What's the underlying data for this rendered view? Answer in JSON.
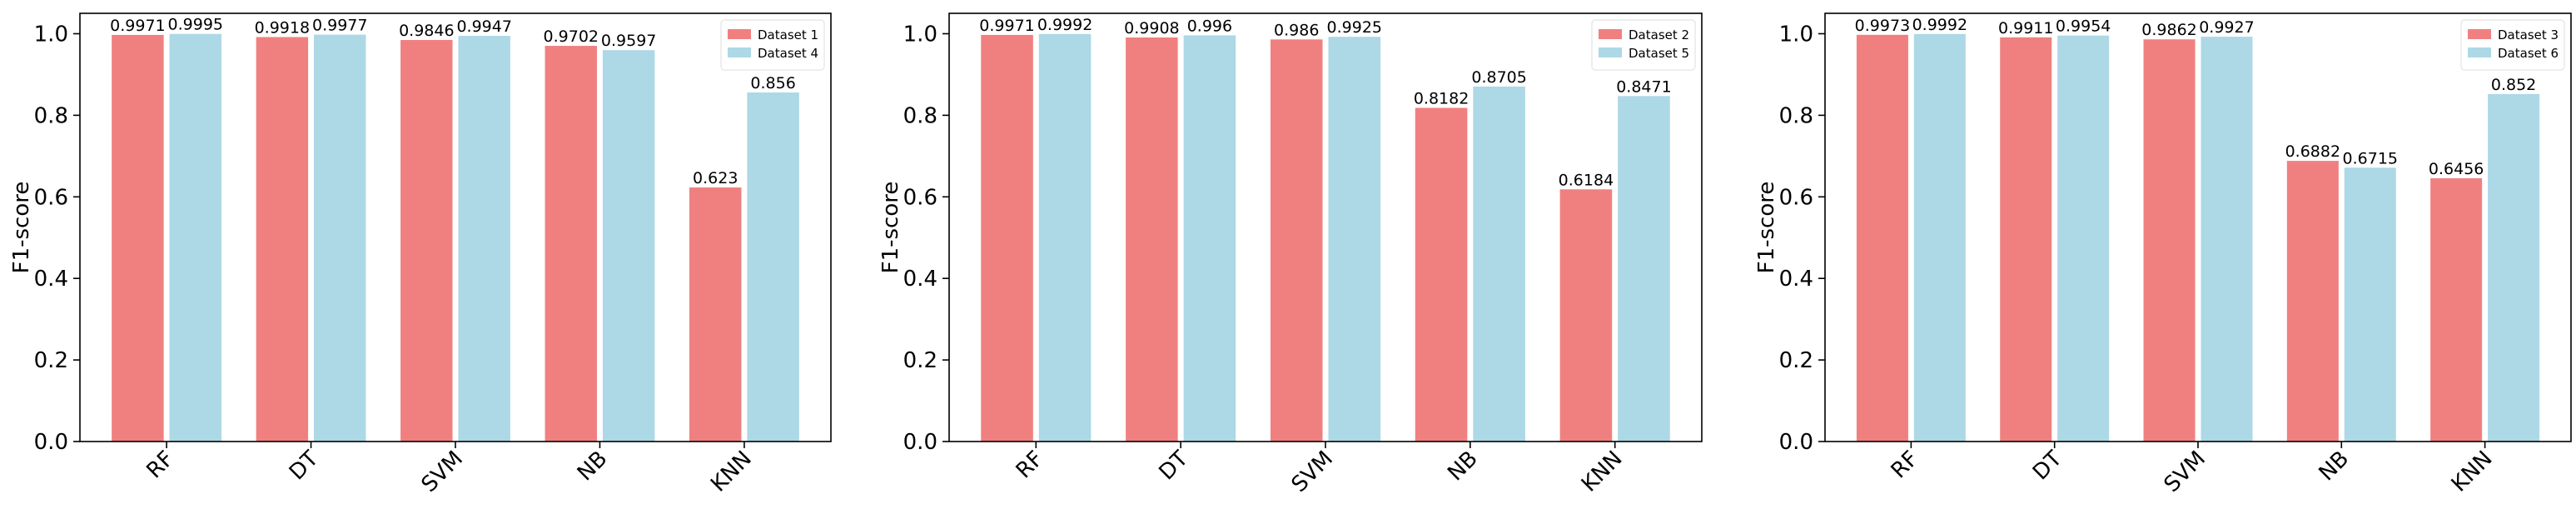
{
  "chart_data": [
    {
      "type": "bar",
      "y_label": "F1-score",
      "categories": [
        "RF",
        "DT",
        "SVM",
        "NB",
        "KNN"
      ],
      "series": [
        {
          "name": "Dataset 1",
          "color": "#f08080",
          "values": [
            0.9971,
            0.9918,
            0.9846,
            0.9702,
            0.623
          ]
        },
        {
          "name": "Dataset 4",
          "color": "#add8e6",
          "values": [
            0.9995,
            0.9977,
            0.9947,
            0.9597,
            0.856
          ]
        }
      ],
      "ylim": [
        0,
        1.05
      ],
      "yticks": [
        {
          "value": 0,
          "label": "0.0"
        },
        0.2,
        0.4,
        0.6,
        0.8,
        {
          "value": 1,
          "label": "1.0"
        }
      ],
      "legend": "upper right"
    },
    {
      "type": "bar",
      "y_label": "F1-score",
      "categories": [
        "RF",
        "DT",
        "SVM",
        "NB",
        "KNN"
      ],
      "series": [
        {
          "name": "Dataset 2",
          "color": "#f08080",
          "values": [
            0.9971,
            0.9908,
            0.986,
            0.8182,
            0.6184
          ]
        },
        {
          "name": "Dataset 5",
          "color": "#add8e6",
          "values": [
            0.9992,
            0.996,
            0.9925,
            0.8705,
            0.8471
          ]
        }
      ],
      "ylim": [
        0,
        1.05
      ],
      "yticks": [
        {
          "value": 0,
          "label": "0.0"
        },
        0.2,
        0.4,
        0.6,
        0.8,
        {
          "value": 1,
          "label": "1.0"
        }
      ],
      "legend": "upper right"
    },
    {
      "type": "bar",
      "y_label": "F1-score",
      "categories": [
        "RF",
        "DT",
        "SVM",
        "NB",
        "KNN"
      ],
      "series": [
        {
          "name": "Dataset 3",
          "color": "#f08080",
          "values": [
            0.9973,
            0.9911,
            0.9862,
            0.6882,
            0.6456
          ]
        },
        {
          "name": "Dataset 6",
          "color": "#add8e6",
          "values": [
            0.9992,
            0.9954,
            0.9927,
            0.6715,
            0.852
          ]
        }
      ],
      "ylim": [
        0,
        1.05
      ],
      "yticks": [
        {
          "value": 0,
          "label": "0.0"
        },
        0.2,
        0.4,
        0.6,
        0.8,
        {
          "value": 1,
          "label": "1.0"
        }
      ],
      "legend": "upper right"
    }
  ]
}
